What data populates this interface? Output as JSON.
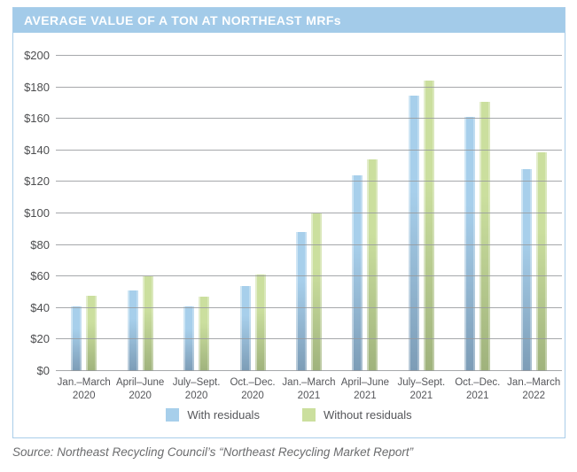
{
  "title": "AVERAGE VALUE OF A TON AT NORTHEAST MRFs",
  "source": "Source: Northeast Recycling Council’s “Northeast Recycling Market Report”",
  "colors": {
    "header_bg": "#A3CBE9",
    "panel_border": "#A9CDE9",
    "gridline": "#97999C",
    "axis_text": "#4D4E50",
    "with_residuals_light": "#A7CFEB",
    "with_residuals_dark": "#7C9CB6",
    "without_residuals_light": "#CBDF9E",
    "without_residuals_dark": "#9FB27C"
  },
  "chart_data": {
    "type": "bar",
    "title": "AVERAGE VALUE OF A TON AT NORTHEAST MRFs",
    "categories": [
      [
        "Jan.–March",
        "2020"
      ],
      [
        "April–June",
        "2020"
      ],
      [
        "July–Sept.",
        "2020"
      ],
      [
        "Oct.–Dec.",
        "2020"
      ],
      [
        "Jan.–March",
        "2021"
      ],
      [
        "April–June",
        "2021"
      ],
      [
        "July–Sept.",
        "2021"
      ],
      [
        "Oct.–Dec.",
        "2021"
      ],
      [
        "Jan.–March",
        "2022"
      ]
    ],
    "series": [
      {
        "name": "With residuals",
        "color_light": "#A7CFEB",
        "color_dark": "#7C9CB6",
        "values": [
          41,
          51,
          41,
          54,
          88,
          124,
          175,
          161,
          128
        ]
      },
      {
        "name": "Without residuals",
        "color_light": "#CBDF9E",
        "color_dark": "#9FB27C",
        "values": [
          48,
          60,
          47,
          61,
          100,
          134,
          184,
          171,
          139
        ]
      }
    ],
    "xlabel": "",
    "ylabel": "",
    "ylim": [
      0,
      200
    ],
    "ytick_step": 20,
    "ytick_labels": [
      "$0",
      "$20",
      "$40",
      "$60",
      "$80",
      "$100",
      "$120",
      "$140",
      "$160",
      "$180",
      "$200"
    ],
    "grid": true,
    "legend_position": "bottom"
  }
}
